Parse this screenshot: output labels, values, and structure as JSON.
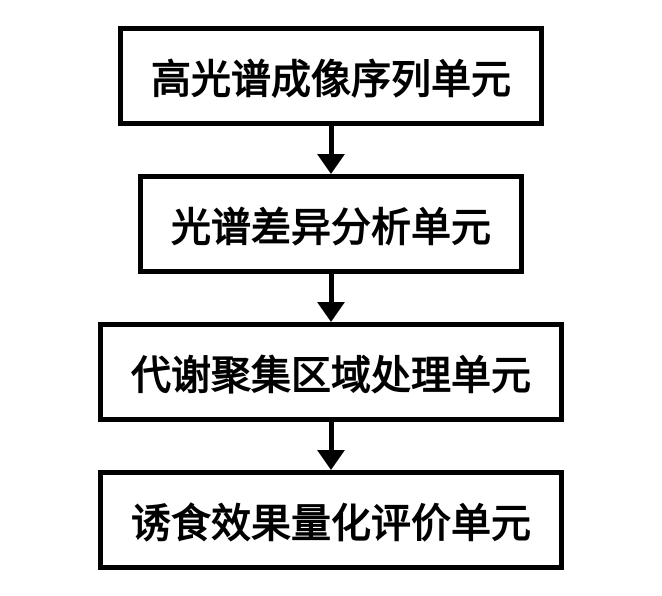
{
  "flowchart": {
    "type": "flowchart",
    "nodes": [
      {
        "id": "node1",
        "label": "高光谱成像序列单元"
      },
      {
        "id": "node2",
        "label": "光谱差异分析单元"
      },
      {
        "id": "node3",
        "label": "代谢聚集区域处理单元"
      },
      {
        "id": "node4",
        "label": "诱食效果量化评价单元"
      }
    ],
    "edges": [
      {
        "from": "node1",
        "to": "node2"
      },
      {
        "from": "node2",
        "to": "node3"
      },
      {
        "from": "node3",
        "to": "node4"
      }
    ],
    "styling": {
      "box_border_color": "#000000",
      "box_border_width": 5,
      "box_background": "#ffffff",
      "box_padding": "16px 28px",
      "font_size": 40,
      "font_weight": "bold",
      "font_color": "#000000",
      "font_family": "SimSun",
      "arrow_color": "#000000",
      "arrow_line_width": 5,
      "arrow_line_height": 28,
      "arrow_head_width": 28,
      "arrow_head_height": 20,
      "background_color": "#ffffff"
    }
  }
}
